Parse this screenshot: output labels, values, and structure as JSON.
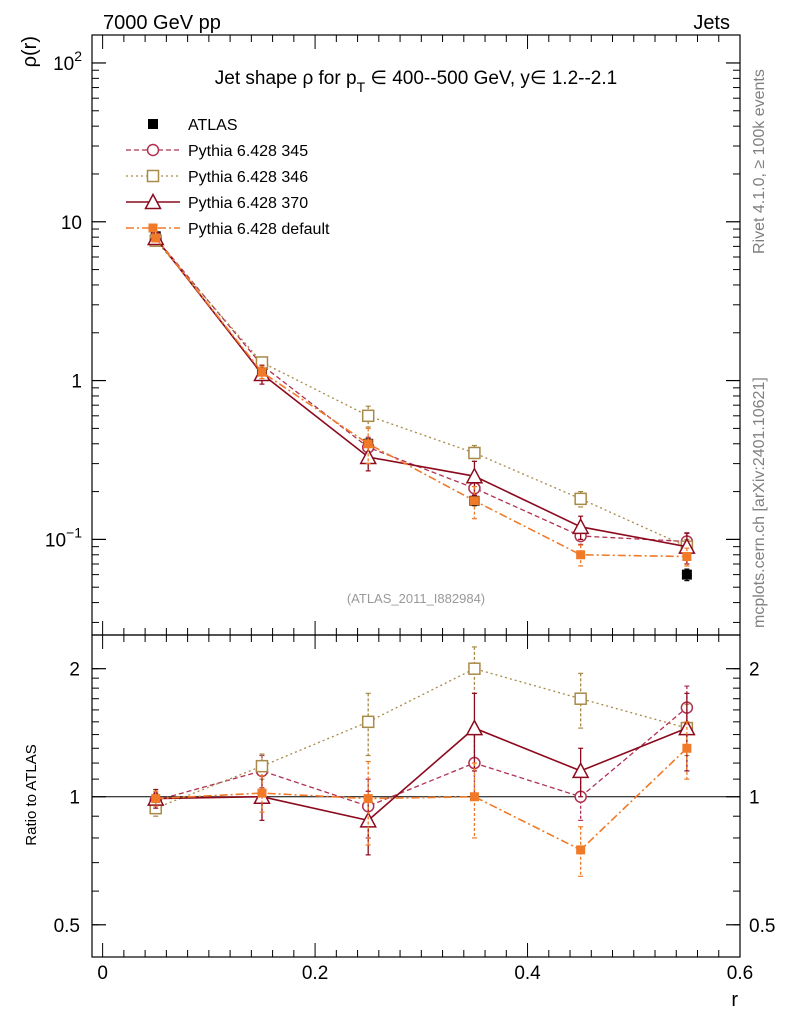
{
  "header": {
    "left": "7000 GeV pp",
    "right": "Jets"
  },
  "side_labels": {
    "rivet": "Rivet 4.1.0, ≥ 100k events",
    "mcplots": "mcplots.cern.ch [arXiv:2401.10621]"
  },
  "watermark": "(ATLAS_2011_I882984)",
  "colors": {
    "atlas": "#000000",
    "p345": "#b03050",
    "p346": "#a88a48",
    "p370": "#8c0a1e",
    "pdefault": "#f07a28"
  },
  "chart_data": [
    {
      "type": "line",
      "panel": "main",
      "title": "Jet shape ρ for p_T ∈ 400--500 GeV, y∈ 1.2--2.1",
      "title_parts": {
        "a": "Jet shape ",
        "rho": "ρ",
        "b": " for p",
        "sub": "T",
        "c": " ∈ 400--500 GeV, y∈ 1.2--2.1"
      },
      "ylabel": "ρ(r)",
      "yscale": "log",
      "ylim": [
        0.025,
        150
      ],
      "xlim": [
        -0.01,
        0.6
      ],
      "yticks": [
        {
          "v": 100,
          "base": "10",
          "exp": "2"
        },
        {
          "v": 10,
          "base": "10",
          "exp": ""
        },
        {
          "v": 1,
          "base": "1",
          "exp": ""
        },
        {
          "v": 0.1,
          "base": "10",
          "exp": "−1"
        }
      ],
      "x": [
        0.05,
        0.15,
        0.25,
        0.35,
        0.45,
        0.55
      ],
      "series": [
        {
          "key": "atlas",
          "name": "ATLAS",
          "values": [
            8.1,
            1.1,
            0.4,
            0.175,
            0.107,
            0.06
          ],
          "errors": [
            0.3,
            0.06,
            0.03,
            0.012,
            0.008,
            0.005
          ]
        },
        {
          "key": "p345",
          "name": "Pythia 6.428 345",
          "values": [
            7.9,
            1.25,
            0.38,
            0.21,
            0.105,
            0.097
          ],
          "errors": [
            0.3,
            0.12,
            0.06,
            0.035,
            0.012,
            0.012
          ]
        },
        {
          "key": "p346",
          "name": "Pythia 6.428 346",
          "values": [
            7.6,
            1.3,
            0.6,
            0.35,
            0.18,
            0.09
          ],
          "errors": [
            0.3,
            0.08,
            0.09,
            0.04,
            0.02,
            0.01
          ]
        },
        {
          "key": "p370",
          "name": "Pythia 6.428 370",
          "values": [
            7.9,
            1.1,
            0.33,
            0.25,
            0.12,
            0.09
          ],
          "errors": [
            0.4,
            0.15,
            0.06,
            0.06,
            0.02,
            0.02
          ]
        },
        {
          "key": "pdefault",
          "name": "Pythia 6.428 default",
          "values": [
            7.9,
            1.13,
            0.4,
            0.175,
            0.08,
            0.078
          ],
          "errors": [
            0.3,
            0.1,
            0.1,
            0.04,
            0.012,
            0.01
          ]
        }
      ]
    },
    {
      "type": "line",
      "panel": "ratio",
      "ylabel": "Ratio to ATLAS",
      "xlabel": "r",
      "yscale": "log",
      "ylim": [
        0.42,
        2.4
      ],
      "xlim": [
        -0.01,
        0.6
      ],
      "yticks": [
        {
          "v": 2,
          "label": "2"
        },
        {
          "v": 1,
          "label": "1"
        },
        {
          "v": 0.5,
          "label": "0.5"
        }
      ],
      "xticks": [
        {
          "v": 0,
          "label": "0"
        },
        {
          "v": 0.2,
          "label": "0.2"
        },
        {
          "v": 0.4,
          "label": "0.4"
        },
        {
          "v": 0.6,
          "label": "0.6"
        }
      ],
      "x": [
        0.05,
        0.15,
        0.25,
        0.35,
        0.45,
        0.55
      ],
      "series": [
        {
          "key": "p345",
          "name": "Pythia 6.428 345",
          "values": [
            0.98,
            1.15,
            0.95,
            1.2,
            1.0,
            1.62
          ],
          "errors": [
            0.04,
            0.1,
            0.15,
            0.2,
            0.12,
            0.2
          ]
        },
        {
          "key": "p346",
          "name": "Pythia 6.428 346",
          "values": [
            0.94,
            1.18,
            1.5,
            2.0,
            1.7,
            1.45
          ],
          "errors": [
            0.04,
            0.08,
            0.25,
            0.25,
            0.25,
            0.2
          ]
        },
        {
          "key": "p370",
          "name": "Pythia 6.428 370",
          "values": [
            0.99,
            1.0,
            0.88,
            1.45,
            1.15,
            1.45
          ],
          "errors": [
            0.05,
            0.12,
            0.15,
            0.3,
            0.15,
            0.3
          ]
        },
        {
          "key": "pdefault",
          "name": "Pythia 6.428 default",
          "values": [
            0.99,
            1.02,
            0.99,
            1.0,
            0.75,
            1.3
          ],
          "errors": [
            0.04,
            0.1,
            0.22,
            0.2,
            0.1,
            0.2
          ]
        }
      ]
    }
  ],
  "legend": [
    {
      "key": "atlas",
      "label": "ATLAS"
    },
    {
      "key": "p345",
      "label": "Pythia 6.428 345"
    },
    {
      "key": "p346",
      "label": "Pythia 6.428 346"
    },
    {
      "key": "p370",
      "label": "Pythia 6.428 370"
    },
    {
      "key": "pdefault",
      "label": "Pythia 6.428 default"
    }
  ]
}
